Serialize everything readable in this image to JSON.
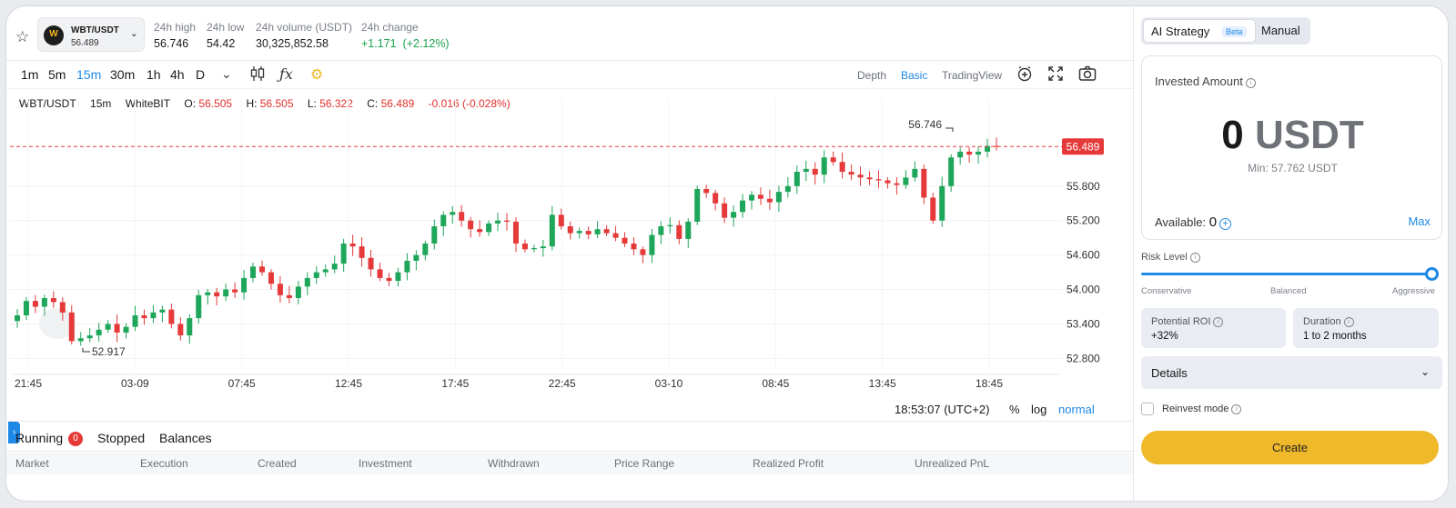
{
  "ticker": {
    "pair": "WBT/USDT",
    "price": "56.489",
    "stats": [
      {
        "label": "24h high",
        "value": "56.746"
      },
      {
        "label": "24h low",
        "value": "54.42"
      },
      {
        "label": "24h volume (USDT)",
        "value": "30,325,852.58"
      },
      {
        "label": "24h change",
        "value": "+1.171  (+2.12%)"
      }
    ]
  },
  "toolbar": {
    "timeframes": [
      "1m",
      "5m",
      "15m",
      "30m",
      "1h",
      "4h",
      "D"
    ],
    "active_timeframe": "15m",
    "views": [
      "Depth",
      "Basic",
      "TradingView"
    ],
    "active_view": "Basic"
  },
  "legend": {
    "pair": "WBT/USDT",
    "interval": "15m",
    "exchange": "WhiteBIT",
    "open_label": "O:",
    "open": "56.505",
    "high_label": "H:",
    "high": "56.505",
    "low_label": "L:",
    "low": "56.322",
    "close_label": "C:",
    "close": "56.489",
    "change": "-0.016 (-0.028%)"
  },
  "chart_data": {
    "type": "candlestick",
    "x_ticks": [
      "21:45",
      "03-09",
      "07:45",
      "12:45",
      "17:45",
      "22:45",
      "03-10",
      "08:45",
      "13:45",
      "18:45"
    ],
    "y_ticks": [
      55.8,
      55.2,
      54.6,
      54.0,
      53.4,
      52.8
    ],
    "ylim": [
      52.6,
      57.0
    ],
    "last_price": "56.489",
    "high_marker": "56.746",
    "low_marker": "52.917",
    "colors": {
      "up": "#1ea65a",
      "down": "#e5393a"
    },
    "close_values": [
      53.55,
      53.8,
      53.7,
      53.85,
      53.78,
      53.6,
      53.1,
      53.15,
      53.2,
      53.3,
      53.4,
      53.25,
      53.35,
      53.55,
      53.5,
      53.6,
      53.65,
      53.4,
      53.2,
      53.5,
      53.9,
      53.95,
      53.88,
      54.0,
      53.95,
      54.2,
      54.4,
      54.3,
      54.1,
      53.9,
      53.85,
      54.05,
      54.2,
      54.3,
      54.35,
      54.45,
      54.8,
      54.75,
      54.55,
      54.35,
      54.2,
      54.15,
      54.3,
      54.5,
      54.6,
      54.8,
      55.1,
      55.3,
      55.35,
      55.2,
      55.05,
      55.0,
      55.15,
      55.2,
      55.18,
      54.8,
      54.7,
      54.72,
      54.75,
      55.3,
      55.1,
      54.98,
      55.02,
      54.96,
      55.05,
      54.98,
      54.9,
      54.8,
      54.7,
      54.6,
      54.95,
      55.1,
      55.12,
      54.88,
      55.18,
      55.75,
      55.68,
      55.5,
      55.25,
      55.35,
      55.55,
      55.65,
      55.58,
      55.52,
      55.7,
      55.8,
      56.05,
      56.1,
      56.0,
      56.3,
      56.22,
      56.05,
      56.0,
      55.95,
      55.92,
      55.9,
      55.85,
      55.82,
      55.95,
      56.1,
      55.6,
      55.2,
      55.8,
      56.3,
      56.4,
      56.35,
      56.4,
      56.5,
      56.489
    ]
  },
  "bottom_bar": {
    "time": "18:53:07 (UTC+2)",
    "percent": "%",
    "log": "log",
    "normal": "normal"
  },
  "tabs": {
    "running": "Running",
    "running_count": "0",
    "stopped": "Stopped",
    "balances": "Balances"
  },
  "table_headers": [
    "Market",
    "Execution",
    "Created",
    "Investment",
    "Withdrawn",
    "Price Range",
    "Realized Profit",
    "Unrealized PnL"
  ],
  "panel": {
    "ai_strategy": "AI Strategy",
    "beta": "Beta",
    "manual": "Manual",
    "invested_amount": "Invested Amount",
    "amount": "0",
    "unit": "USDT",
    "min": "Min: 57.762 USDT",
    "available_label": "Available:",
    "available_value": "0",
    "max": "Max",
    "risk_level": "Risk Level",
    "risk_ticks": [
      "Conservative",
      "Balanced",
      "Aggressive"
    ],
    "risk_value": 1.0,
    "potential_roi_label": "Potential ROI",
    "potential_roi": "+32%",
    "duration_label": "Duration",
    "duration": "1 to 2 months",
    "details": "Details",
    "reinvest": "Reinvest mode",
    "create": "Create"
  }
}
